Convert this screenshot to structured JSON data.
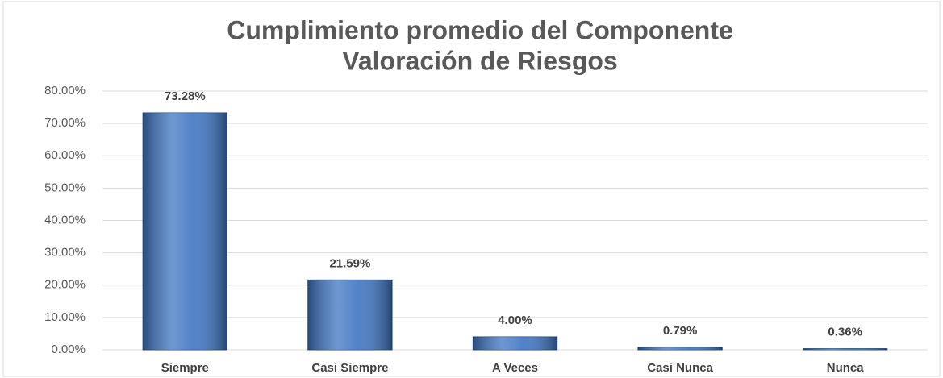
{
  "chart_data": {
    "type": "bar",
    "title": [
      "Cumplimiento promedio del Componente",
      "Valoración de Riesgos"
    ],
    "categories": [
      "Siempre",
      "Casi Siempre",
      "A Veces",
      "Casi Nunca",
      "Nunca"
    ],
    "values": [
      73.28,
      21.59,
      4.0,
      0.79,
      0.36
    ],
    "value_labels": [
      "73.28%",
      "21.59%",
      "4.00%",
      "0.79%",
      "0.36%"
    ],
    "color": "#3e75c2",
    "ylim": [
      0,
      80
    ],
    "yticks": [
      {
        "value": 0,
        "label": "0.00%"
      },
      {
        "value": 10,
        "label": "10.00%"
      },
      {
        "value": 20,
        "label": "20.00%"
      },
      {
        "value": 30,
        "label": "30.00%"
      },
      {
        "value": 40,
        "label": "40.00%"
      },
      {
        "value": 50,
        "label": "50.00%"
      },
      {
        "value": 60,
        "label": "60.00%"
      },
      {
        "value": 70,
        "label": "70.00%"
      },
      {
        "value": 80,
        "label": "80.00%"
      }
    ],
    "grid": true
  }
}
